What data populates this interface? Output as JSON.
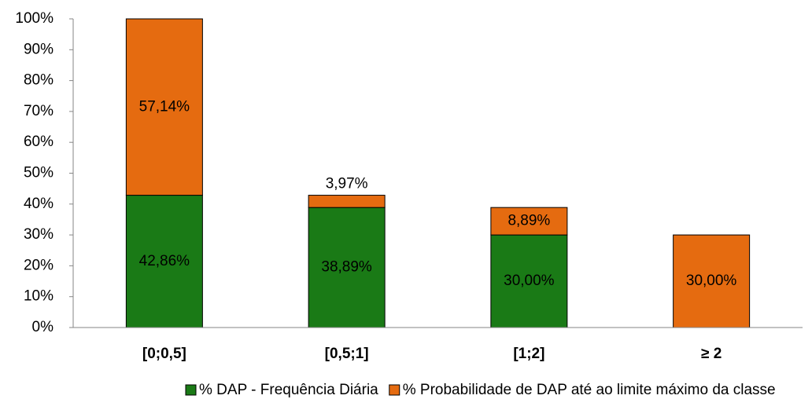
{
  "chart_data": {
    "type": "stacked_bar",
    "categories": [
      "[0;0,5]",
      "[0,5;1]",
      "[1;2]",
      "≥ 2"
    ],
    "series": [
      {
        "name": "% DAP - Frequência Diária",
        "color": "#1a7a16",
        "values": [
          42.86,
          38.89,
          30.0,
          null
        ],
        "value_labels": [
          "42,86%",
          "38,89%",
          "30,00%",
          null
        ]
      },
      {
        "name": "% Probabilidade de DAP até ao limite máximo da classe",
        "color": "#e56b10",
        "values": [
          57.14,
          3.97,
          8.89,
          30.0
        ],
        "value_labels": [
          "57,14%",
          "3,97%",
          "8,89%",
          "30,00%"
        ]
      }
    ],
    "ylim": [
      0,
      100
    ],
    "yticks": [
      {
        "value": 0,
        "label": "0%"
      },
      {
        "value": 10,
        "label": "10%"
      },
      {
        "value": 20,
        "label": "20%"
      },
      {
        "value": 30,
        "label": "30%"
      },
      {
        "value": 40,
        "label": "40%"
      },
      {
        "value": 50,
        "label": "50%"
      },
      {
        "value": 60,
        "label": "60%"
      },
      {
        "value": 70,
        "label": "70%"
      },
      {
        "value": 80,
        "label": "80%"
      },
      {
        "value": 90,
        "label": "90%"
      },
      {
        "value": 100,
        "label": "100%"
      }
    ],
    "grid": false,
    "legend": "bottom"
  }
}
